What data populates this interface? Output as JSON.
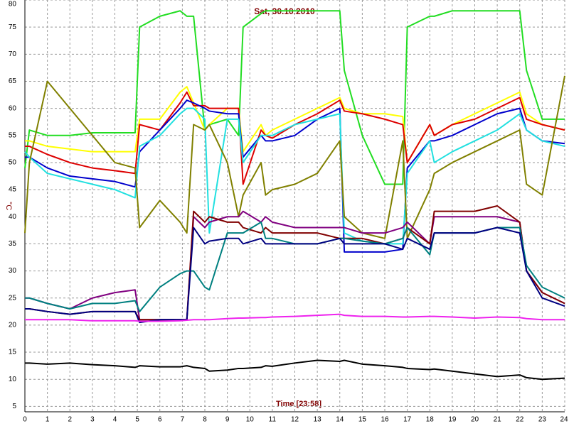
{
  "chart_data": {
    "type": "line",
    "title": "Sat, 30.10.2010",
    "x_label": "Time [23:58]",
    "y_label": "°C",
    "xlim": [
      0,
      24
    ],
    "ylim": [
      4,
      80
    ],
    "xticks": [
      0,
      1,
      2,
      3,
      4,
      5,
      6,
      7,
      8,
      9,
      10,
      11,
      12,
      13,
      14,
      15,
      16,
      17,
      18,
      19,
      20,
      21,
      22,
      23,
      24
    ],
    "yticks": [
      5,
      10,
      15,
      20,
      25,
      30,
      35,
      40,
      45,
      50,
      55,
      60,
      65,
      70,
      75,
      80
    ],
    "grid": true,
    "x": [
      0,
      0.2,
      1,
      2,
      3,
      4,
      4.9,
      5.1,
      6,
      6.9,
      7.2,
      7.5,
      8,
      8.2,
      9,
      9.5,
      9.7,
      10.5,
      10.7,
      11,
      12,
      13,
      14,
      14.2,
      15,
      16,
      16.8,
      17,
      18,
      18.2,
      19,
      20,
      21,
      22,
      22.3,
      23,
      24
    ],
    "series": [
      {
        "color": "#22dd22",
        "values": [
          49,
          56,
          55,
          55,
          55.5,
          55.5,
          55.5,
          75,
          77,
          78,
          77,
          77,
          56,
          57,
          58,
          55,
          75,
          77.5,
          78,
          78,
          78,
          78,
          78,
          67,
          55,
          46,
          46,
          75,
          77,
          77,
          78,
          78,
          78,
          78,
          67,
          58,
          58
        ]
      },
      {
        "color": "#ffff00",
        "values": [
          54,
          54,
          53,
          52.5,
          52,
          52,
          52,
          58,
          58,
          63,
          64,
          61,
          56,
          57,
          60,
          60,
          52,
          57,
          55,
          56,
          58,
          60,
          62,
          60,
          59,
          59,
          58.5,
          50,
          57,
          55,
          57,
          59,
          61,
          63,
          59,
          57,
          56
        ]
      },
      {
        "color": "#dd0000",
        "values": [
          53,
          53,
          51.5,
          50,
          49,
          48.5,
          48,
          57,
          56,
          61,
          63,
          60.5,
          60.5,
          60,
          60,
          60,
          46,
          56,
          55,
          54.5,
          57,
          59,
          61.5,
          59.5,
          59,
          58,
          57,
          50,
          57,
          55,
          57,
          58,
          60,
          62,
          58,
          57,
          56
        ]
      },
      {
        "color": "#0000cc",
        "values": [
          51,
          51,
          49,
          47.5,
          47,
          46.5,
          45.5,
          52,
          56,
          60,
          61.5,
          61,
          60,
          59.5,
          59,
          59,
          51,
          55,
          54,
          54,
          55,
          58,
          60,
          33.5,
          33.5,
          33.5,
          34,
          49,
          54,
          54,
          55,
          57,
          59,
          60,
          56,
          54,
          53.5
        ]
      },
      {
        "color": "#22e0e0",
        "values": [
          52,
          51,
          48,
          47,
          46,
          45,
          43.5,
          53,
          55,
          59,
          60,
          60,
          58,
          37,
          58,
          58,
          50,
          55,
          55,
          55,
          57,
          58,
          59,
          37,
          35.5,
          35,
          35,
          48,
          54,
          50,
          52,
          54,
          56,
          59,
          56,
          54,
          53
        ]
      },
      {
        "color": "#808000",
        "values": [
          37,
          50,
          65,
          60,
          55,
          50,
          49,
          38,
          43,
          39,
          37,
          57,
          56,
          57,
          50,
          40,
          44,
          50,
          44,
          45,
          46,
          48,
          54,
          40,
          37,
          36,
          54,
          36,
          45,
          48,
          50,
          52,
          54,
          56,
          46,
          44,
          66
        ]
      },
      {
        "color": "#800080",
        "values": [
          25,
          25,
          24,
          23,
          25,
          26,
          26.5,
          21,
          21,
          21,
          21,
          40,
          38,
          39,
          40,
          40,
          41,
          39,
          40,
          39,
          38,
          38,
          38,
          38,
          37,
          37,
          38,
          39,
          35,
          40,
          40,
          40,
          40,
          39,
          30,
          26,
          24
        ]
      },
      {
        "color": "#800000",
        "values": [
          23,
          23,
          22.5,
          22,
          22.5,
          22.5,
          22.5,
          21,
          21,
          21,
          21,
          41,
          39,
          40,
          39,
          39,
          38,
          37,
          38,
          37,
          37,
          37,
          36,
          36,
          36,
          35,
          36,
          38,
          35,
          41,
          41,
          41,
          42,
          39,
          30,
          26,
          24
        ]
      },
      {
        "color": "#008080",
        "values": [
          25,
          25,
          24,
          23,
          24,
          24,
          24.5,
          22.5,
          27,
          29.5,
          30,
          30,
          27,
          26.5,
          37,
          37,
          37,
          39,
          36,
          36,
          35,
          35,
          36,
          36,
          35.5,
          35,
          36,
          38,
          33,
          37,
          37,
          37,
          38,
          38,
          31,
          27,
          25
        ]
      },
      {
        "color": "#000080",
        "values": [
          23,
          23,
          22.5,
          22,
          22.5,
          22.5,
          22.5,
          20.5,
          21,
          21,
          21,
          38,
          35,
          35.5,
          36,
          36,
          35,
          36,
          35,
          35,
          35,
          35,
          36,
          35,
          35,
          35,
          34,
          36,
          34,
          37,
          37,
          37,
          38,
          37,
          30,
          25,
          23.5
        ]
      },
      {
        "color": "#ee22ee",
        "values": [
          21,
          21,
          21,
          21,
          20.8,
          20.8,
          20.8,
          20.7,
          20.7,
          20.8,
          20.9,
          21,
          21,
          21,
          21.2,
          21.3,
          21.3,
          21.4,
          21.4,
          21.5,
          21.6,
          21.8,
          22,
          21.8,
          21.6,
          21.6,
          21.5,
          21.5,
          21.6,
          21.6,
          21.5,
          21.3,
          21.5,
          21.4,
          21.2,
          21,
          21
        ]
      },
      {
        "color": "#000000",
        "values": [
          13,
          13,
          12.8,
          13,
          12.7,
          12.5,
          12.2,
          12.5,
          12.3,
          12.3,
          12.5,
          12.2,
          12,
          11.5,
          11.7,
          12,
          12,
          12.2,
          12.5,
          12.4,
          13,
          13.5,
          13.3,
          13.5,
          12.8,
          12.5,
          12.2,
          12,
          11.8,
          11.9,
          11.5,
          11,
          10.5,
          10.8,
          10.3,
          10,
          10.2
        ]
      }
    ]
  }
}
